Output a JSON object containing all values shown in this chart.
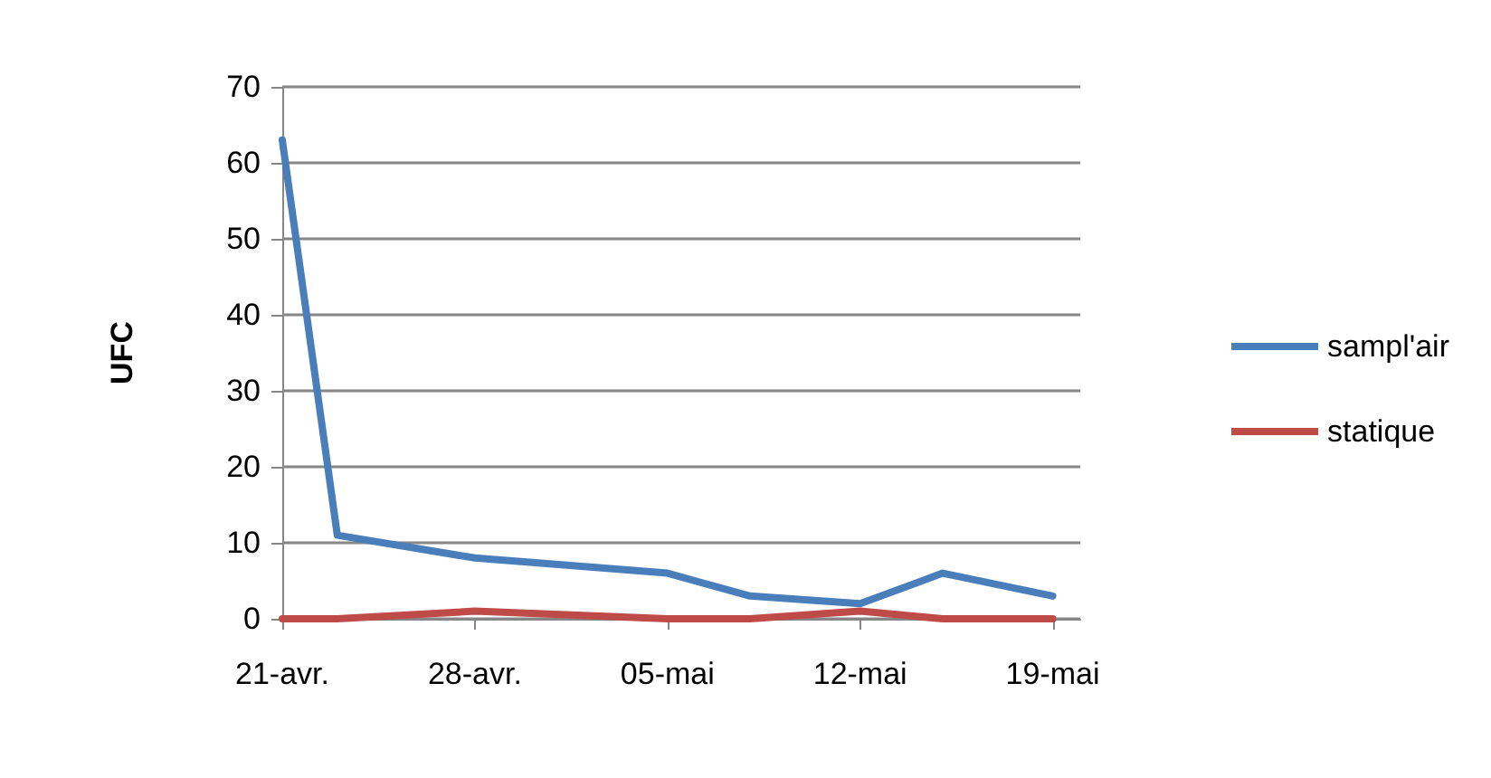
{
  "chart_data": {
    "type": "line",
    "ylabel": "UFC",
    "x": [
      "--04-21",
      "--04-23",
      "--04-28",
      "--05-05",
      "--05-08",
      "--05-12",
      "--05-15",
      "--05-19"
    ],
    "series": [
      {
        "name": "sampl'air",
        "color": "#4a7ebb",
        "values": [
          63,
          11,
          8,
          6,
          3,
          2,
          6,
          3
        ]
      },
      {
        "name": "statique",
        "color": "#be4b48",
        "values": [
          0,
          0,
          1,
          0,
          0,
          1,
          0,
          0
        ]
      }
    ],
    "xlim": [
      "--04-21",
      "--05-20"
    ],
    "xticks": [
      {
        "value": "--04-21",
        "label": "21-avr."
      },
      {
        "value": "--04-28",
        "label": "28-avr."
      },
      {
        "value": "--05-05",
        "label": "05-mai"
      },
      {
        "value": "--05-12",
        "label": "12-mai"
      },
      {
        "value": "--05-19",
        "label": "19-mai"
      }
    ],
    "ylim": [
      0,
      70
    ],
    "yticks": [
      0,
      10,
      20,
      30,
      40,
      50,
      60,
      70
    ],
    "grid": "y",
    "legend": "right",
    "marker": "none",
    "line_style": "solid"
  }
}
